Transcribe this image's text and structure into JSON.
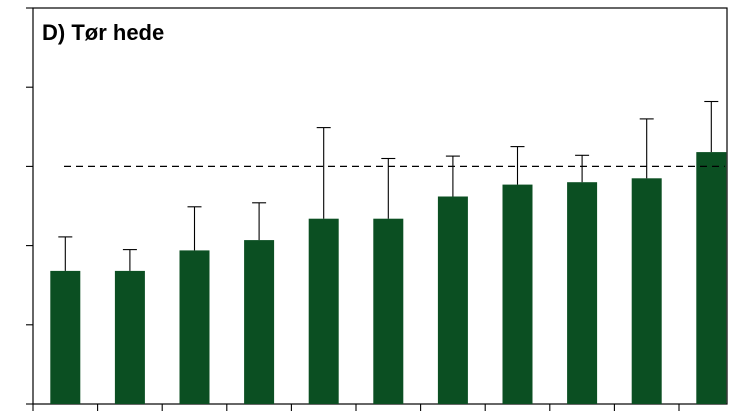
{
  "chart_data": {
    "type": "bar",
    "title": "D) Tør hede",
    "xlabel": "",
    "ylabel": "",
    "ylim": [
      0,
      5
    ],
    "y_ticks": [
      0,
      1,
      2,
      3,
      4,
      5
    ],
    "y_tick_labels_visible": false,
    "grid": false,
    "categories": [
      "",
      "",
      "",
      "",
      "",
      "",
      "",
      "",
      "",
      "",
      ""
    ],
    "values": [
      1.68,
      1.68,
      1.94,
      2.07,
      2.34,
      2.34,
      2.62,
      2.77,
      2.8,
      2.85,
      3.18
    ],
    "error_upper": [
      2.11,
      1.95,
      2.49,
      2.54,
      3.49,
      3.1,
      3.13,
      3.25,
      3.14,
      3.6,
      3.82
    ],
    "reference_line": {
      "value": 3.0,
      "style": "dashed"
    },
    "bar_color": "#0b4f22"
  }
}
